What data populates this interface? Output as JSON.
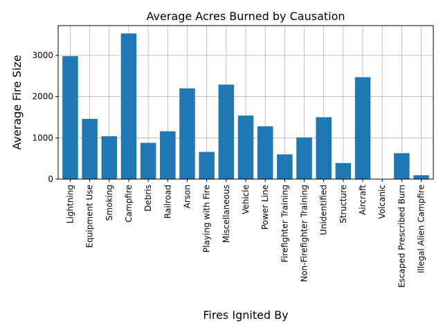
{
  "chart_data": {
    "type": "bar",
    "title": "Average Acres Burned by Causation",
    "xlabel": "Fires Ignited By",
    "ylabel": "Average Fire Size",
    "categories": [
      "Lightning",
      "Equipment Use",
      "Smoking",
      "Campfire",
      "Debris",
      "Railroad",
      "Arson",
      "Playing with Fire",
      "Miscellaneous",
      "Vehicle",
      "Power Line",
      "Firefighter Training",
      "Non-Firefighter Training",
      "Unidentified",
      "Structure",
      "Aircraft",
      "Volcanic",
      "Escaped Prescribed Burn",
      "Illegal Alien Campfire"
    ],
    "values": [
      2980,
      1460,
      1040,
      3530,
      880,
      1160,
      2200,
      660,
      2290,
      1540,
      1280,
      600,
      1010,
      1500,
      390,
      2470,
      0,
      630,
      95
    ],
    "ylim": [
      0,
      3720
    ],
    "yticks": [
      0,
      1000,
      2000,
      3000
    ],
    "bar_color": "#1f77b4",
    "grid": true
  }
}
